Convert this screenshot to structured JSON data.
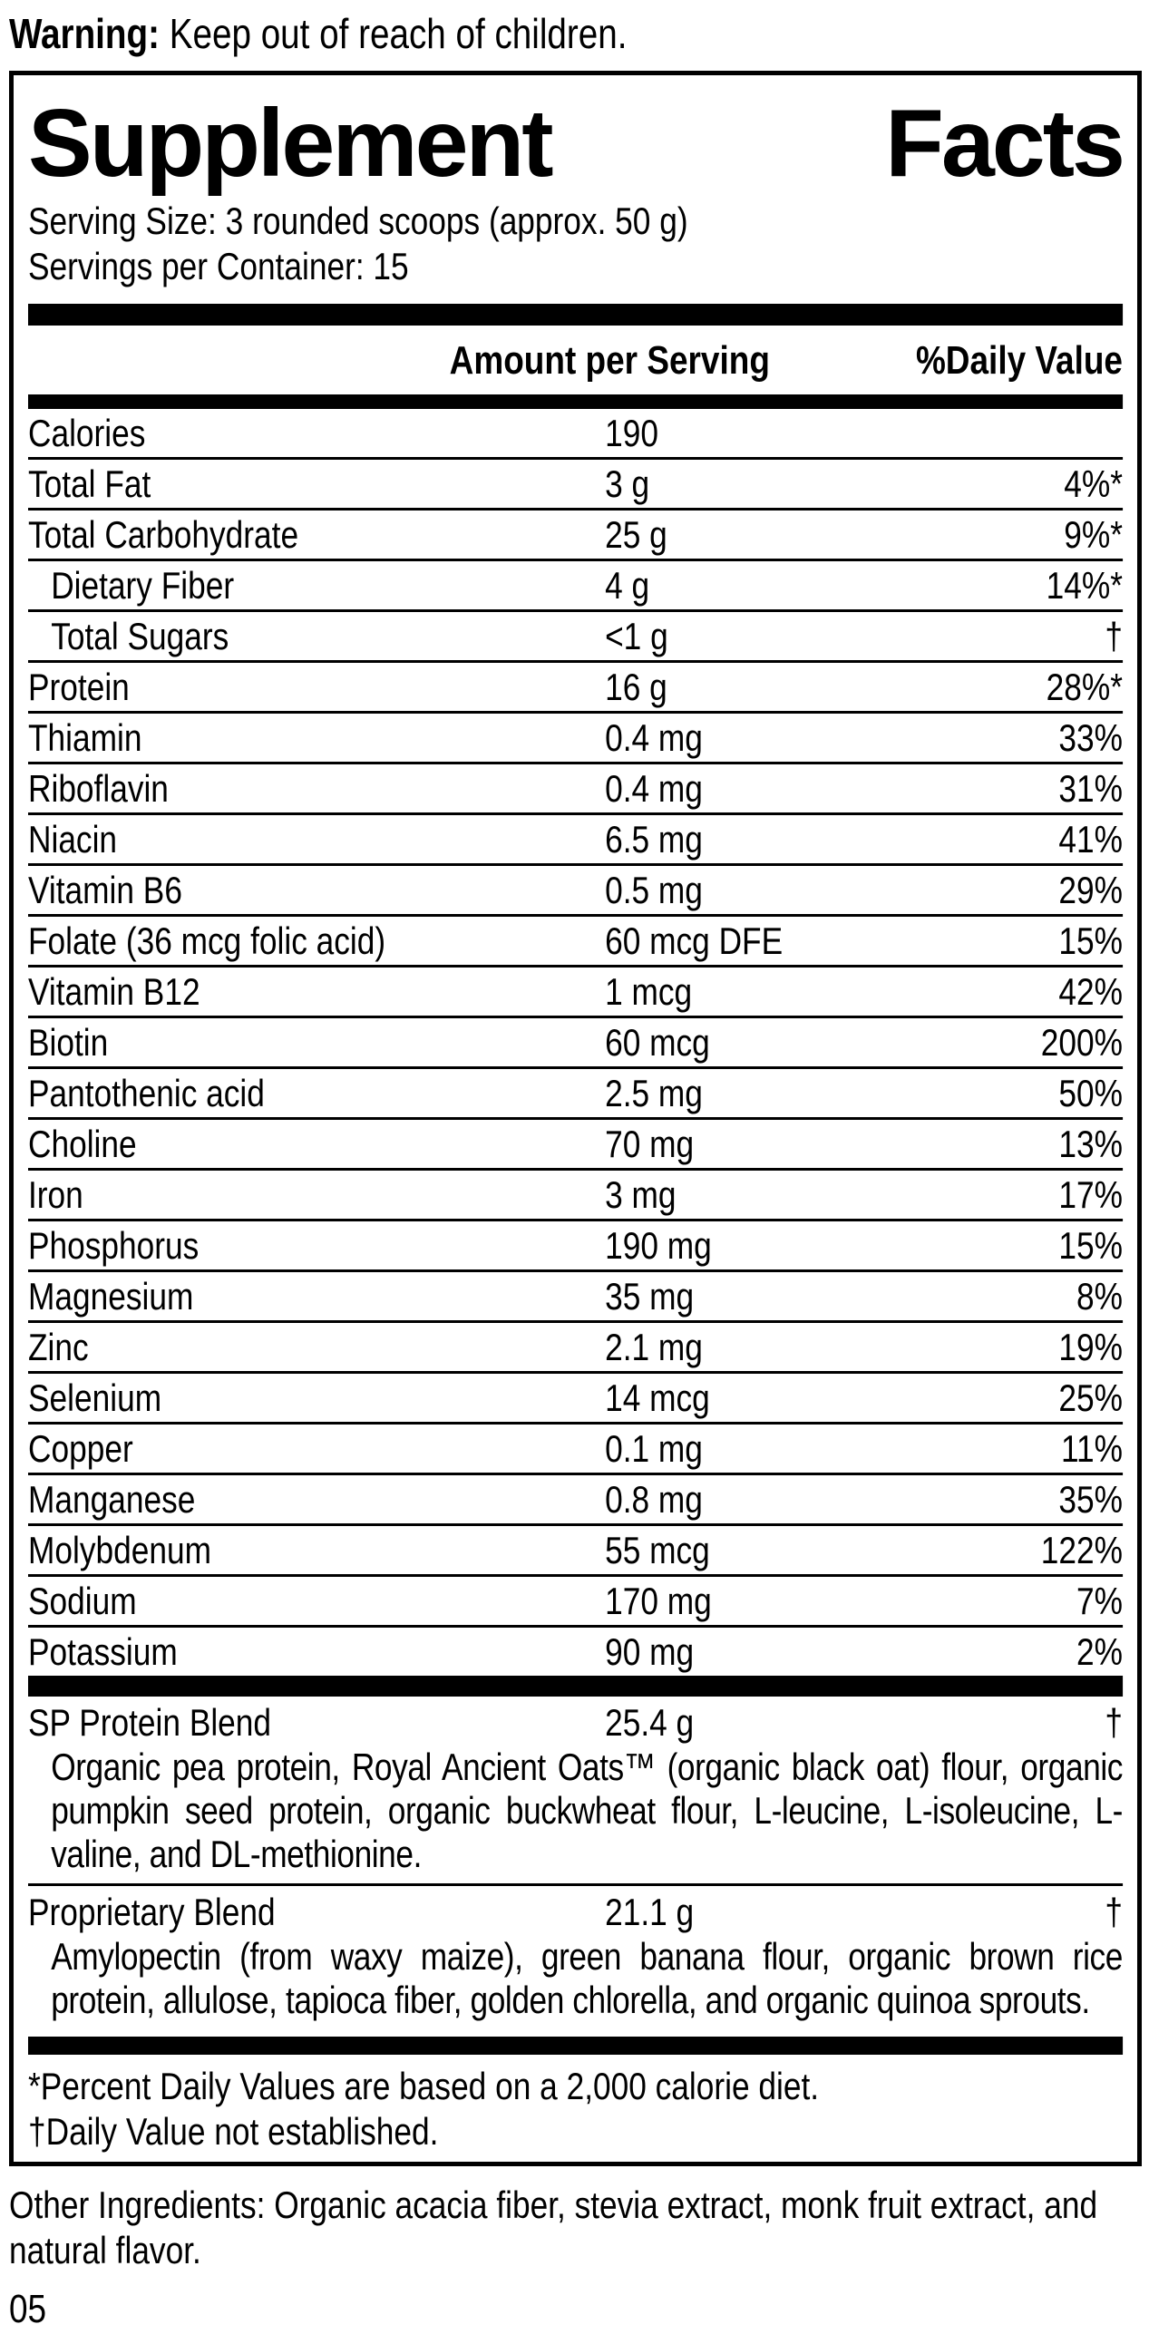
{
  "colors": {
    "ink": "#000000",
    "background": "#ffffff"
  },
  "warning": {
    "label": "Warning:",
    "text": " Keep out of reach of children."
  },
  "panel": {
    "title_left": "Supplement",
    "title_right": "Facts",
    "serving_size": "Serving Size: 3 rounded scoops (approx. 50 g)",
    "servings_per_container": "Servings per Container: 15",
    "columns": {
      "amount": "Amount per Serving",
      "dv": "%Daily Value"
    },
    "rows": [
      {
        "name": "Calories",
        "amount": "190",
        "dv": "",
        "indent": false
      },
      {
        "name": "Total Fat",
        "amount": "3 g",
        "dv": "4%*",
        "indent": false
      },
      {
        "name": "Total Carbohydrate",
        "amount": "25 g",
        "dv": "9%*",
        "indent": false
      },
      {
        "name": "Dietary Fiber",
        "amount": "4 g",
        "dv": "14%*",
        "indent": true
      },
      {
        "name": "Total Sugars",
        "amount": "<1 g",
        "dv": "†",
        "indent": true
      },
      {
        "name": "Protein",
        "amount": "16 g",
        "dv": "28%*",
        "indent": false
      },
      {
        "name": "Thiamin",
        "amount": "0.4 mg",
        "dv": "33%",
        "indent": false
      },
      {
        "name": "Riboflavin",
        "amount": "0.4 mg",
        "dv": "31%",
        "indent": false
      },
      {
        "name": "Niacin",
        "amount": "6.5 mg",
        "dv": "41%",
        "indent": false
      },
      {
        "name": "Vitamin B6",
        "amount": "0.5 mg",
        "dv": "29%",
        "indent": false
      },
      {
        "name": "Folate (36 mcg folic acid)",
        "amount": "60 mcg DFE",
        "dv": "15%",
        "indent": false
      },
      {
        "name": "Vitamin B12",
        "amount": "1 mcg",
        "dv": "42%",
        "indent": false
      },
      {
        "name": "Biotin",
        "amount": "60 mcg",
        "dv": "200%",
        "indent": false
      },
      {
        "name": "Pantothenic acid",
        "amount": "2.5 mg",
        "dv": "50%",
        "indent": false
      },
      {
        "name": "Choline",
        "amount": "70 mg",
        "dv": "13%",
        "indent": false
      },
      {
        "name": "Iron",
        "amount": "3 mg",
        "dv": "17%",
        "indent": false
      },
      {
        "name": "Phosphorus",
        "amount": "190 mg",
        "dv": "15%",
        "indent": false
      },
      {
        "name": "Magnesium",
        "amount": "35 mg",
        "dv": "8%",
        "indent": false
      },
      {
        "name": "Zinc",
        "amount": "2.1 mg",
        "dv": "19%",
        "indent": false
      },
      {
        "name": "Selenium",
        "amount": "14 mcg",
        "dv": "25%",
        "indent": false
      },
      {
        "name": "Copper",
        "amount": "0.1 mg",
        "dv": "11%",
        "indent": false
      },
      {
        "name": "Manganese",
        "amount": "0.8 mg",
        "dv": "35%",
        "indent": false
      },
      {
        "name": "Molybdenum",
        "amount": "55 mcg",
        "dv": "122%",
        "indent": false
      },
      {
        "name": "Sodium",
        "amount": "170 mg",
        "dv": "7%",
        "indent": false
      },
      {
        "name": "Potassium",
        "amount": "90 mg",
        "dv": "2%",
        "indent": false
      }
    ],
    "blends": [
      {
        "name": "SP Protein Blend",
        "amount": "25.4 g",
        "dv": "†",
        "description": "Organic pea protein, Royal Ancient Oats™ (organic black oat) flour, organic pumpkin seed protein, organic buckwheat flour, L-leucine, L-isoleucine, L-valine, and DL-methionine."
      },
      {
        "name": "Proprietary Blend",
        "amount": "21.1 g",
        "dv": "†",
        "description": "Amylopectin (from waxy maize), green banana flour, organic brown rice protein, allulose, tapioca fiber, golden chlorella, and organic quinoa sprouts."
      }
    ],
    "footnotes": [
      "*Percent Daily Values are based on a 2,000 calorie diet.",
      "†Daily Value not established."
    ]
  },
  "other_ingredients": "Other Ingredients: Organic acacia fiber, stevia extract, monk fruit extract, and natural flavor.",
  "page_number": "05"
}
